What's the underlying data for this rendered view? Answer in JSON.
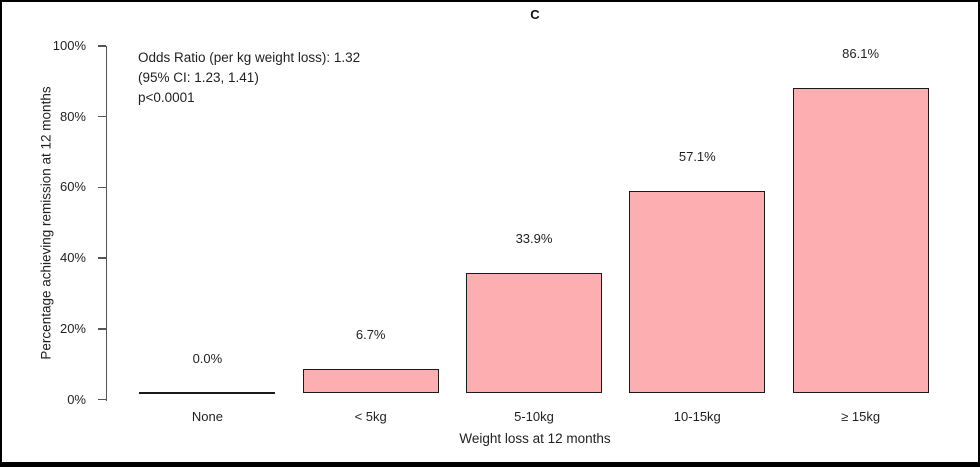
{
  "figure": {
    "panel_label": "C"
  },
  "chart_data": {
    "type": "bar",
    "title": "C",
    "categories": [
      "None",
      "< 5kg",
      "5-10kg",
      "10-15kg",
      "≥ 15kg"
    ],
    "values": [
      0.0,
      6.7,
      33.9,
      57.1,
      86.1
    ],
    "value_labels": [
      "0.0%",
      "6.7%",
      "33.9%",
      "57.1%",
      "86.1%"
    ],
    "xlabel": "Weight loss at 12 months",
    "ylabel": "Percentage achieving remission at 12 months",
    "ylim": [
      0,
      100
    ],
    "ytick_step": 20,
    "ytick_labels": [
      "0%",
      "20%",
      "40%",
      "60%",
      "80%",
      "100%"
    ],
    "grid": false,
    "legend": "none",
    "bar_fill_color": "#FCAEB0",
    "bar_border_color": "#1A1A1A",
    "axis_color": "#555555",
    "annotation": [
      "Odds Ratio (per kg weight loss): 1.32",
      "(95% CI: 1.23, 1.41)",
      "p<0.0001"
    ]
  }
}
